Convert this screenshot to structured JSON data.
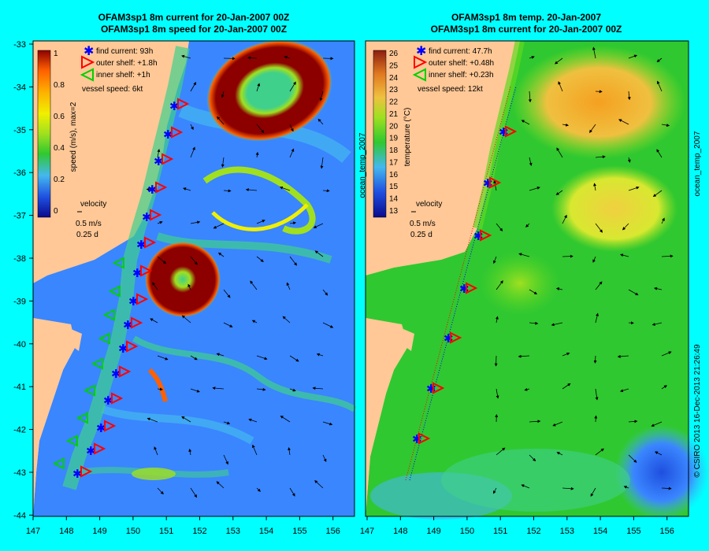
{
  "panels": [
    {
      "title_line1": "OFAM3sp1 8m current for 20-Jan-2007 00Z",
      "title_line2": "OFAM3sp1 8m speed for 20-Jan-2007 00Z",
      "legend": {
        "find": "find current: 93h",
        "outer": "outer shelf: +1.8h",
        "inner": "inner shelf: +1h",
        "vessel": "vessel speed: 6kt"
      },
      "colorbar": {
        "label": "speed (m/s), max=2",
        "ticks": [
          "1",
          "0.8",
          "0.6",
          "0.4",
          "0.2",
          "0"
        ],
        "colors": [
          "#0a0a8c",
          "#1f4fe0",
          "#3a86ff",
          "#44b8ee",
          "#3fd08c",
          "#30c830",
          "#a0e020",
          "#f0f000",
          "#ffb000",
          "#ff6000",
          "#cc2000",
          "#8c0000"
        ]
      },
      "velocity_key": {
        "label": "velocity",
        "scale": "0.5 m/s",
        "time": "0.25 d"
      },
      "side_label": "",
      "x_ticks": [
        "147",
        "148",
        "149",
        "150",
        "151",
        "152",
        "153",
        "154",
        "155",
        "156"
      ],
      "y_ticks": [
        "-33",
        "-34",
        "-35",
        "-36",
        "-37",
        "-38",
        "-39",
        "-40",
        "-41",
        "-42",
        "-43",
        "-44"
      ]
    },
    {
      "title_line1": "OFAM3sp1 8m temp. 20-Jan-2007",
      "title_line2": "OFAM3sp1 8m current for 20-Jan-2007 00Z",
      "legend": {
        "find": "find current: 47.7h",
        "outer": "outer shelf: +0.48h",
        "inner": "inner shelf: +0.23h",
        "vessel": "vessel speed: 12kt"
      },
      "colorbar": {
        "label": "temperature (°C)",
        "ticks": [
          "26",
          "25",
          "24",
          "23",
          "22",
          "21",
          "20",
          "19",
          "18",
          "17",
          "16",
          "15",
          "14",
          "13"
        ],
        "colors": [
          "#0a0a8c",
          "#1f4fe0",
          "#3a86ff",
          "#44b8ee",
          "#3fd08c",
          "#30c830",
          "#60d820",
          "#a0e020",
          "#d8e830",
          "#f0c040",
          "#f5a020",
          "#e07820",
          "#c05020",
          "#8c2010"
        ]
      },
      "velocity_key": {
        "label": "velocity",
        "scale": "0.5 m/s",
        "time": "0.25 d"
      },
      "side_label": "ocean_temp_2007",
      "x_ticks": [
        "147",
        "148",
        "149",
        "150",
        "151",
        "152",
        "153",
        "154",
        "155",
        "156"
      ],
      "y_ticks": []
    }
  ],
  "left_side_label": "ocean_temp_2007",
  "credit": "© CSIRO 2013   16-Dec-2013 21:26:49",
  "map_lon_range": [
    147,
    156.5
  ],
  "map_lat_range": [
    -44,
    -33
  ],
  "colors": {
    "background": "#00ffff",
    "land": "#ffc896",
    "ocean_left": "#3a86ff",
    "ocean_right": "#30c830",
    "find_marker": "#0000ff",
    "outer_marker": "#ff0000",
    "inner_marker": "#00d000"
  }
}
